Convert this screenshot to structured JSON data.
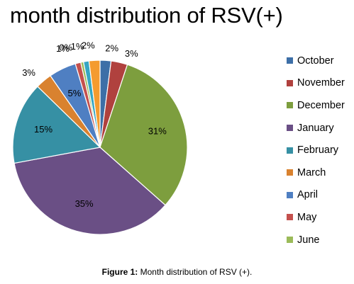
{
  "chart_data": {
    "type": "pie",
    "title": "month distribution of RSV(+)",
    "slices": [
      {
        "name": "October",
        "value": 2,
        "label": "2%",
        "color": "#3D6FA7"
      },
      {
        "name": "November",
        "value": 3,
        "label": "3%",
        "color": "#B0413E"
      },
      {
        "name": "December",
        "value": 31,
        "label": "31%",
        "color": "#7D9E3E"
      },
      {
        "name": "January",
        "value": 35,
        "label": "35%",
        "color": "#6A4F85"
      },
      {
        "name": "February",
        "value": 15,
        "label": "15%",
        "color": "#3690A4"
      },
      {
        "name": "March",
        "value": 3,
        "label": "3%",
        "color": "#D9822F"
      },
      {
        "name": "April",
        "value": 5,
        "label": "5%",
        "color": "#4F7FC2"
      },
      {
        "name": "May",
        "value": 1,
        "label": "1%",
        "color": "#C4504D"
      },
      {
        "name": "June",
        "value": 0.5,
        "label": "0%",
        "color": "#9BBB59"
      },
      {
        "name": "",
        "value": 1,
        "label": "1%",
        "color": "#36A6C3"
      },
      {
        "name": "",
        "value": 2,
        "label": "2%",
        "color": "#F49B2F"
      }
    ],
    "legend_position": "right"
  },
  "caption": {
    "label": "Figure 1:",
    "text": " Month distribution of RSV (+)."
  }
}
